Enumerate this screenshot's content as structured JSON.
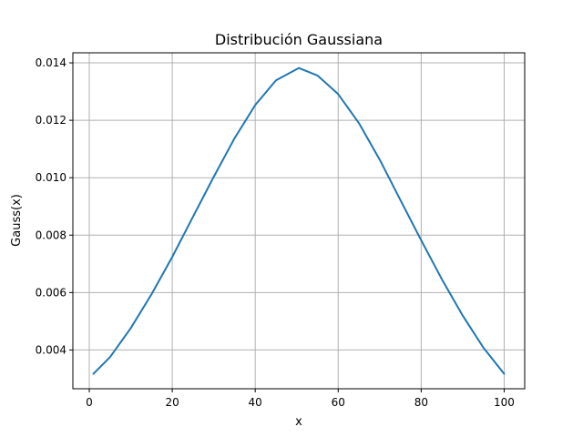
{
  "chart_data": {
    "type": "line",
    "title": "Distribución Gaussiana",
    "xlabel": "x",
    "ylabel": "Gauss(x)",
    "xlim": [
      -3.95,
      104.95
    ],
    "ylim": [
      0.00265,
      0.01435
    ],
    "x_ticks": [
      0,
      20,
      40,
      60,
      80,
      100
    ],
    "x_tick_labels": [
      "0",
      "20",
      "40",
      "60",
      "80",
      "100"
    ],
    "y_ticks": [
      0.004,
      0.006,
      0.008,
      0.01,
      0.012,
      0.014
    ],
    "y_tick_labels": [
      "0.004",
      "0.006",
      "0.008",
      "0.010",
      "0.012",
      "0.014"
    ],
    "grid": true,
    "series": [
      {
        "color": "#1f77b4",
        "x": [
          1,
          5,
          10,
          15,
          20,
          25,
          30,
          35,
          40,
          45,
          50.5,
          55,
          60,
          65,
          70,
          75,
          80,
          85,
          90,
          95,
          100
        ],
        "y": [
          0.00317,
          0.00375,
          0.00476,
          0.00594,
          0.00724,
          0.00864,
          0.01003,
          0.01137,
          0.01253,
          0.01339,
          0.01382,
          0.01356,
          0.01291,
          0.0119,
          0.01063,
          0.00922,
          0.00782,
          0.00646,
          0.0052,
          0.00408,
          0.00317
        ]
      }
    ]
  }
}
